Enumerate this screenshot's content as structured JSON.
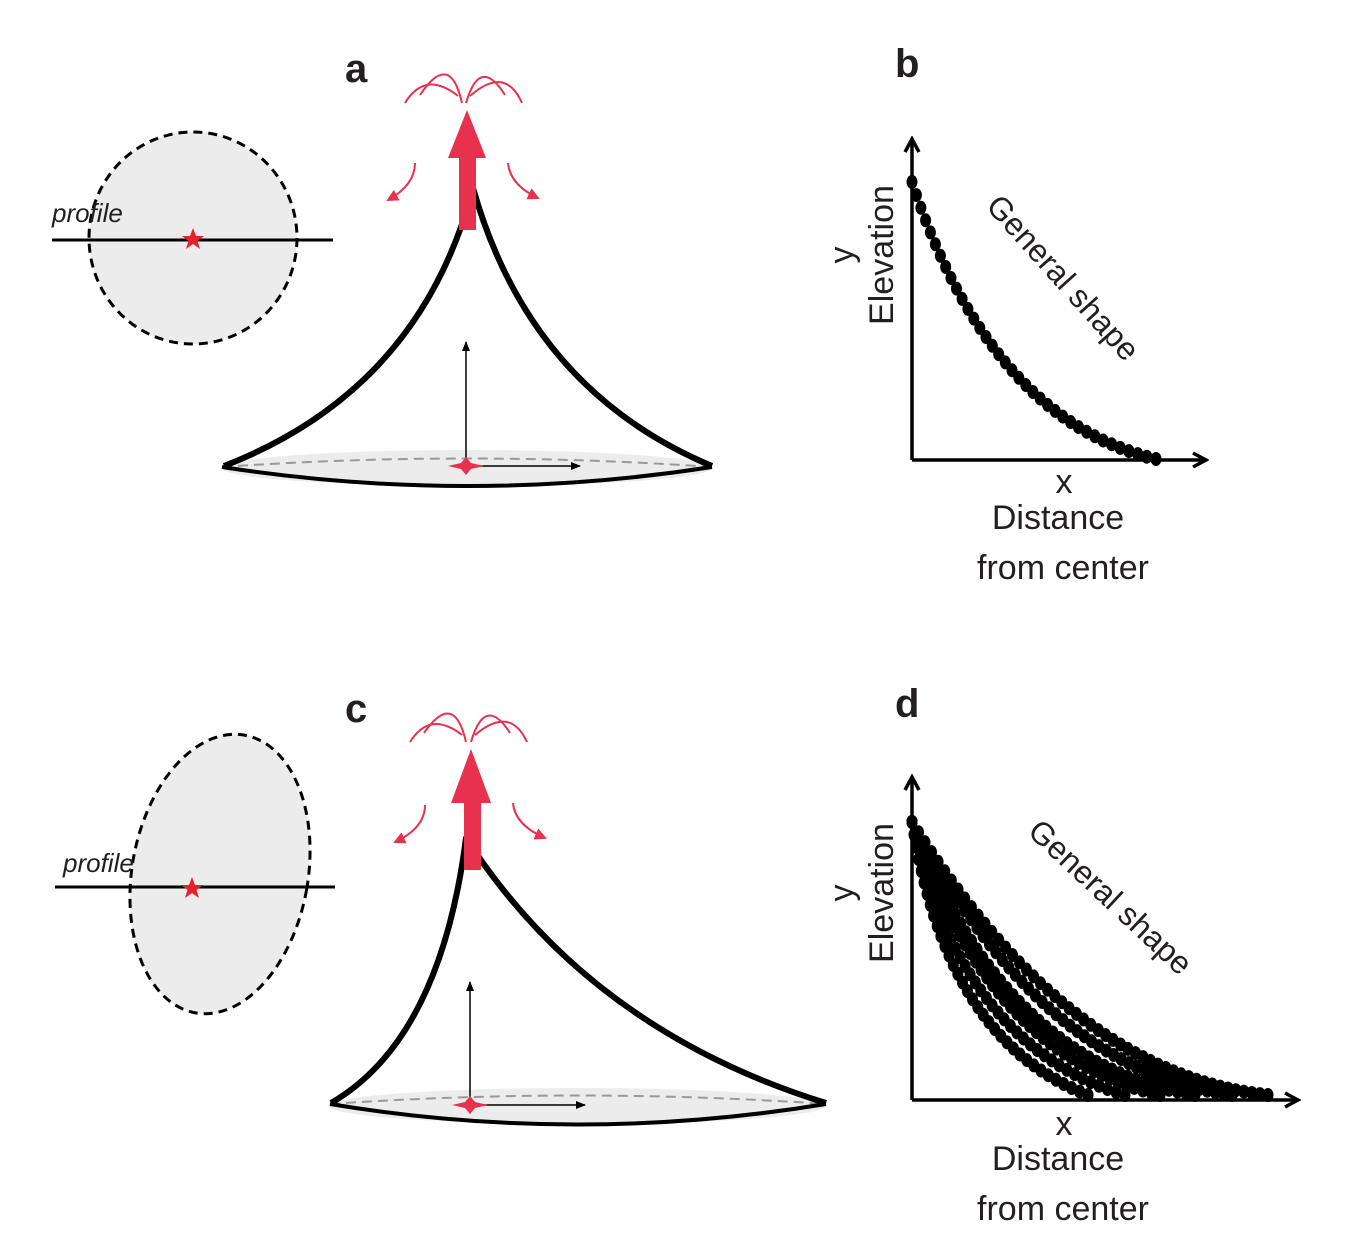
{
  "panels": {
    "a": {
      "label": "a",
      "profile_label": "profile"
    },
    "b": {
      "label": "b",
      "y_letter": "y",
      "y_label": "Elevation",
      "x_letter": "x",
      "x_label_line1": "Distance",
      "x_label_line2": "from center",
      "curve_label": "General shape",
      "curves": 1
    },
    "c": {
      "label": "c",
      "profile_label": "profile"
    },
    "d": {
      "label": "d",
      "y_letter": "y",
      "y_label": "Elevation",
      "x_letter": "x",
      "x_label_line1": "Distance",
      "x_label_line2": "from center",
      "curve_label": "General shape",
      "curves": 6
    }
  },
  "colors": {
    "magma": "#e8304f",
    "outline": "#000000",
    "fill": "#ececec",
    "star": "#e8202a"
  }
}
